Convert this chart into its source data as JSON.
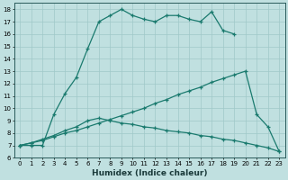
{
  "background_color": "#c0e0e0",
  "grid_color": "#a0c8c8",
  "line_color": "#1a7a6e",
  "xlim_min": -0.5,
  "xlim_max": 23.5,
  "ylim_min": 6,
  "ylim_max": 18.5,
  "series1_x": [
    0,
    1,
    2,
    3,
    4,
    5,
    6,
    7,
    8,
    9,
    10,
    11,
    12,
    13,
    14,
    15,
    16,
    17,
    18,
    19
  ],
  "series1_y": [
    7,
    7,
    7,
    9.5,
    11.2,
    12.5,
    14.8,
    17.0,
    17.5,
    18.0,
    17.5,
    17.2,
    17.0,
    17.5,
    17.5,
    17.2,
    17.0,
    17.8,
    16.3,
    16.0
  ],
  "series2_x": [
    0,
    1,
    2,
    3,
    4,
    5,
    6,
    7,
    8,
    9,
    10,
    11,
    12,
    13,
    14,
    15,
    16,
    17,
    18,
    19,
    20,
    21,
    22,
    23
  ],
  "series2_y": [
    7,
    7.2,
    7.4,
    7.7,
    8.0,
    8.2,
    8.5,
    8.8,
    9.1,
    9.4,
    9.7,
    10.0,
    10.4,
    10.7,
    11.1,
    11.4,
    11.7,
    12.1,
    12.4,
    12.7,
    13.0,
    9.5,
    8.5,
    6.5
  ],
  "series3_x": [
    0,
    1,
    2,
    3,
    4,
    5,
    6,
    7,
    8,
    9,
    10,
    11,
    12,
    13,
    14,
    15,
    16,
    17,
    18,
    19,
    20,
    21,
    22,
    23
  ],
  "series3_y": [
    7,
    7.2,
    7.5,
    7.8,
    8.2,
    8.5,
    9.0,
    9.2,
    9.0,
    8.8,
    8.7,
    8.5,
    8.4,
    8.2,
    8.1,
    8.0,
    7.8,
    7.7,
    7.5,
    7.4,
    7.2,
    7.0,
    6.8,
    6.5
  ],
  "xlabel": "Humidex (Indice chaleur)",
  "xlabel_fontsize": 6.5,
  "tick_fontsize": 5.0,
  "lw": 0.9,
  "ms": 3.0
}
